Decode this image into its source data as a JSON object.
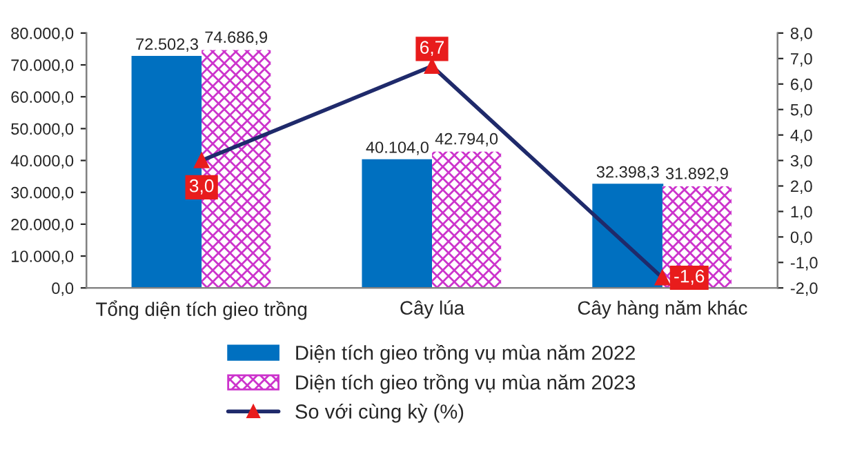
{
  "chart_data": {
    "type": "bar",
    "categories": [
      "Tổng diện tích gieo trồng",
      "Cây lúa",
      "Cây hàng năm khác"
    ],
    "series": [
      {
        "name": "Diện tích gieo trồng vụ mùa năm 2022",
        "color": "#0070c0",
        "values": [
          72502.3,
          40104.0,
          32398.3
        ],
        "value_labels": [
          "72.502,3",
          "40.104,0",
          "32.398,3"
        ]
      },
      {
        "name": "Diện tích gieo trồng vụ mùa năm 2023",
        "color": "#cc33cc",
        "values": [
          74686.9,
          42794.0,
          31892.9
        ],
        "value_labels": [
          "74.686,9",
          "42.794,0",
          "31.892,9"
        ]
      },
      {
        "name": "So với cùng kỳ (%)",
        "type": "line",
        "axis": "y2",
        "color": "#1f2a6b",
        "marker": "triangle",
        "values": [
          3.0,
          6.7,
          -1.6
        ],
        "value_labels": [
          "3,0",
          "6,7",
          "-1,6"
        ]
      }
    ],
    "ylim": [
      0,
      80000
    ],
    "yticks": [
      {
        "value": 0,
        "label": "0,0"
      },
      {
        "value": 10000,
        "label": "10.000,0"
      },
      {
        "value": 20000,
        "label": "20.000,0"
      },
      {
        "value": 30000,
        "label": "30.000,0"
      },
      {
        "value": 40000,
        "label": "40.000,0"
      },
      {
        "value": 50000,
        "label": "50.000,0"
      },
      {
        "value": 60000,
        "label": "60.000,0"
      },
      {
        "value": 70000,
        "label": "70.000,0"
      },
      {
        "value": 80000,
        "label": "80.000,0"
      }
    ],
    "y2lim": [
      -2,
      8
    ],
    "y2ticks": [
      {
        "value": -2,
        "label": "-2,0"
      },
      {
        "value": -1,
        "label": "-1,0"
      },
      {
        "value": 0,
        "label": "0,0"
      },
      {
        "value": 1,
        "label": "1,0"
      },
      {
        "value": 2,
        "label": "2,0"
      },
      {
        "value": 3,
        "label": "3,0"
      },
      {
        "value": 4,
        "label": "4,0"
      },
      {
        "value": 5,
        "label": "5,0"
      },
      {
        "value": 6,
        "label": "6,0"
      },
      {
        "value": 7,
        "label": "7,0"
      },
      {
        "value": 8,
        "label": "8,0"
      }
    ],
    "grid": false,
    "legend": "bottom"
  }
}
